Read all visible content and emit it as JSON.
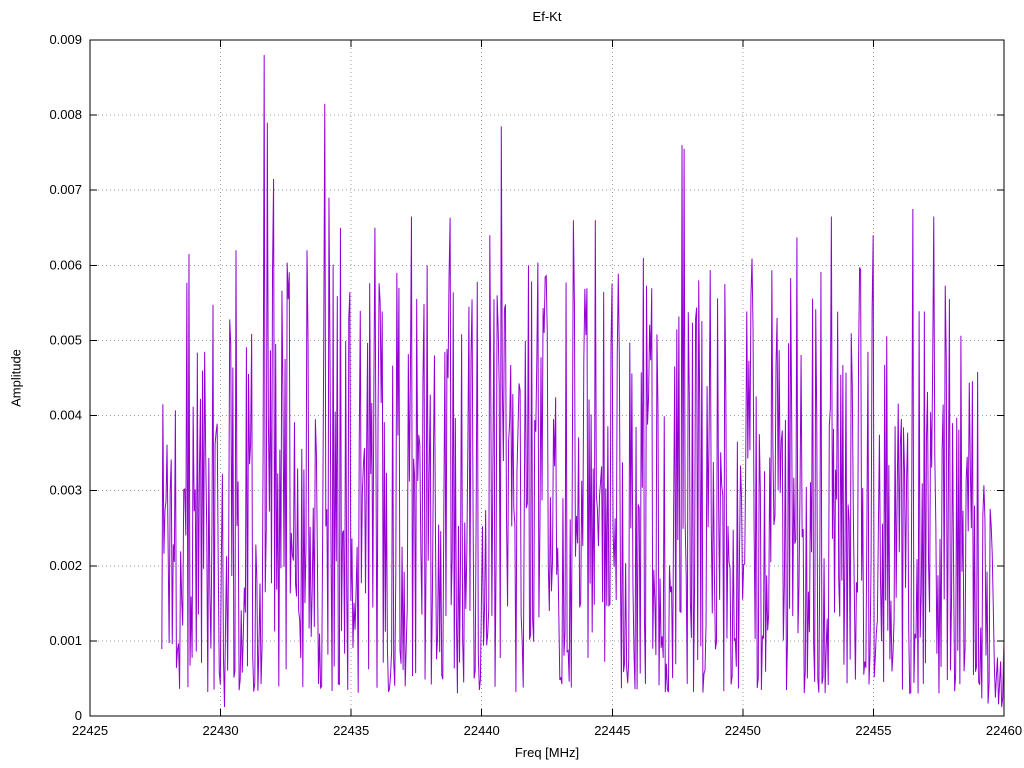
{
  "chart_data": {
    "type": "line",
    "title": "Ef-Kt",
    "xlabel": "Freq [MHz]",
    "ylabel": "Amplitude",
    "xlim": [
      22425,
      22460
    ],
    "ylim": [
      0,
      0.009
    ],
    "x_ticks": [
      22425,
      22430,
      22435,
      22440,
      22445,
      22450,
      22455,
      22460
    ],
    "x_tick_labels": [
      "22425",
      "22430",
      "22435",
      "22440",
      "22445",
      "22450",
      "22455",
      "22460"
    ],
    "y_ticks": [
      0,
      0.001,
      0.002,
      0.003,
      0.004,
      0.005,
      0.006,
      0.007,
      0.008,
      0.009
    ],
    "y_tick_labels": [
      "0",
      "0.001",
      "0.002",
      "0.003",
      "0.004",
      "0.005",
      "0.006",
      "0.007",
      "0.008",
      "0.009"
    ],
    "grid": true,
    "legend": "none",
    "colors": {
      "line": "#9400d3",
      "grid": "#9e9e9e",
      "axis": "#000000",
      "background": "#ffffff"
    },
    "series": [
      {
        "name": "Ef-Kt",
        "x_start": 22427.75,
        "x_end": 22460.0,
        "x_step": 0.04,
        "noise": {
          "seed": 1337,
          "base": 0.0003,
          "span": 0.0058,
          "shape": 1.35,
          "spike_prob": 0.02,
          "spike_span": 0.0018
        },
        "stats": {
          "approx_mean": 0.0028,
          "approx_min": 0.0001,
          "approx_max": 0.0088
        },
        "end_decay": {
          "from_x": 22458.3,
          "to_factor": 0.25
        },
        "peaks": [
          {
            "x": 22427.8,
            "y": 0.00415
          },
          {
            "x": 22428.8,
            "y": 0.00615
          },
          {
            "x": 22429.3,
            "y": 0.0046
          },
          {
            "x": 22430.15,
            "y": 0.00012
          },
          {
            "x": 22430.6,
            "y": 0.0062
          },
          {
            "x": 22431.65,
            "y": 0.0088
          },
          {
            "x": 22431.8,
            "y": 0.0079
          },
          {
            "x": 22432.05,
            "y": 0.00715
          },
          {
            "x": 22433.3,
            "y": 0.0062
          },
          {
            "x": 22434.0,
            "y": 0.00815
          },
          {
            "x": 22434.15,
            "y": 0.0069
          },
          {
            "x": 22434.6,
            "y": 0.0065
          },
          {
            "x": 22434.9,
            "y": 0.0053
          },
          {
            "x": 22435.9,
            "y": 0.0065
          },
          {
            "x": 22437.3,
            "y": 0.00665
          },
          {
            "x": 22437.9,
            "y": 0.006
          },
          {
            "x": 22440.3,
            "y": 0.0064
          },
          {
            "x": 22440.75,
            "y": 0.00785
          },
          {
            "x": 22441.8,
            "y": 0.006
          },
          {
            "x": 22443.5,
            "y": 0.0066
          },
          {
            "x": 22444.35,
            "y": 0.0066
          },
          {
            "x": 22446.2,
            "y": 0.0061
          },
          {
            "x": 22447.65,
            "y": 0.0076
          },
          {
            "x": 22447.75,
            "y": 0.00755
          },
          {
            "x": 22448.3,
            "y": 0.0058
          },
          {
            "x": 22449.3,
            "y": 0.00575
          },
          {
            "x": 22451.3,
            "y": 0.0053
          },
          {
            "x": 22453.4,
            "y": 0.00665
          },
          {
            "x": 22455.0,
            "y": 0.0064
          },
          {
            "x": 22456.5,
            "y": 0.00675
          },
          {
            "x": 22457.3,
            "y": 0.00665
          },
          {
            "x": 22457.9,
            "y": 0.00555
          }
        ]
      }
    ]
  }
}
